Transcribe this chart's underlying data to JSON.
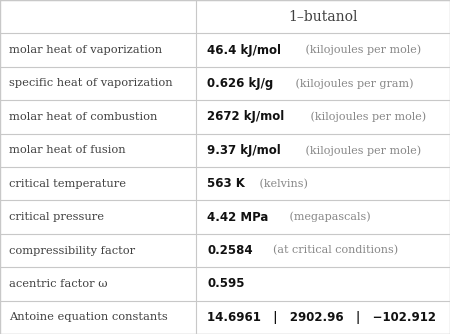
{
  "title": "1–butanol",
  "rows": [
    {
      "label": "molar heat of vaporization",
      "value_bold": "46.4 kJ/mol",
      "value_light": " (kilojoules per mole)"
    },
    {
      "label": "specific heat of vaporization",
      "value_bold": "0.626 kJ/g",
      "value_light": " (kilojoules per gram)"
    },
    {
      "label": "molar heat of combustion",
      "value_bold": "2672 kJ/mol",
      "value_light": " (kilojoules per mole)"
    },
    {
      "label": "molar heat of fusion",
      "value_bold": "9.37 kJ/mol",
      "value_light": " (kilojoules per mole)"
    },
    {
      "label": "critical temperature",
      "value_bold": "563 K",
      "value_light": " (kelvins)"
    },
    {
      "label": "critical pressure",
      "value_bold": "4.42 MPa",
      "value_light": " (megapascals)"
    },
    {
      "label": "compressibility factor",
      "value_bold": "0.2584",
      "value_light": "  (at critical conditions)"
    },
    {
      "label": "acentric factor ω",
      "value_bold": "0.595",
      "value_light": ""
    },
    {
      "label": "Antoine equation constants",
      "value_bold": "14.6961   |   2902.96   |   −102.912",
      "value_light": ""
    }
  ],
  "bg_color": "#ffffff",
  "grid_color": "#c8c8c8",
  "label_color": "#404040",
  "value_bold_color": "#111111",
  "value_light_color": "#888888",
  "col_split": 0.435,
  "label_fontsize": 8.2,
  "value_bold_fontsize": 8.5,
  "value_light_fontsize": 8.0,
  "header_fontsize": 10.0
}
